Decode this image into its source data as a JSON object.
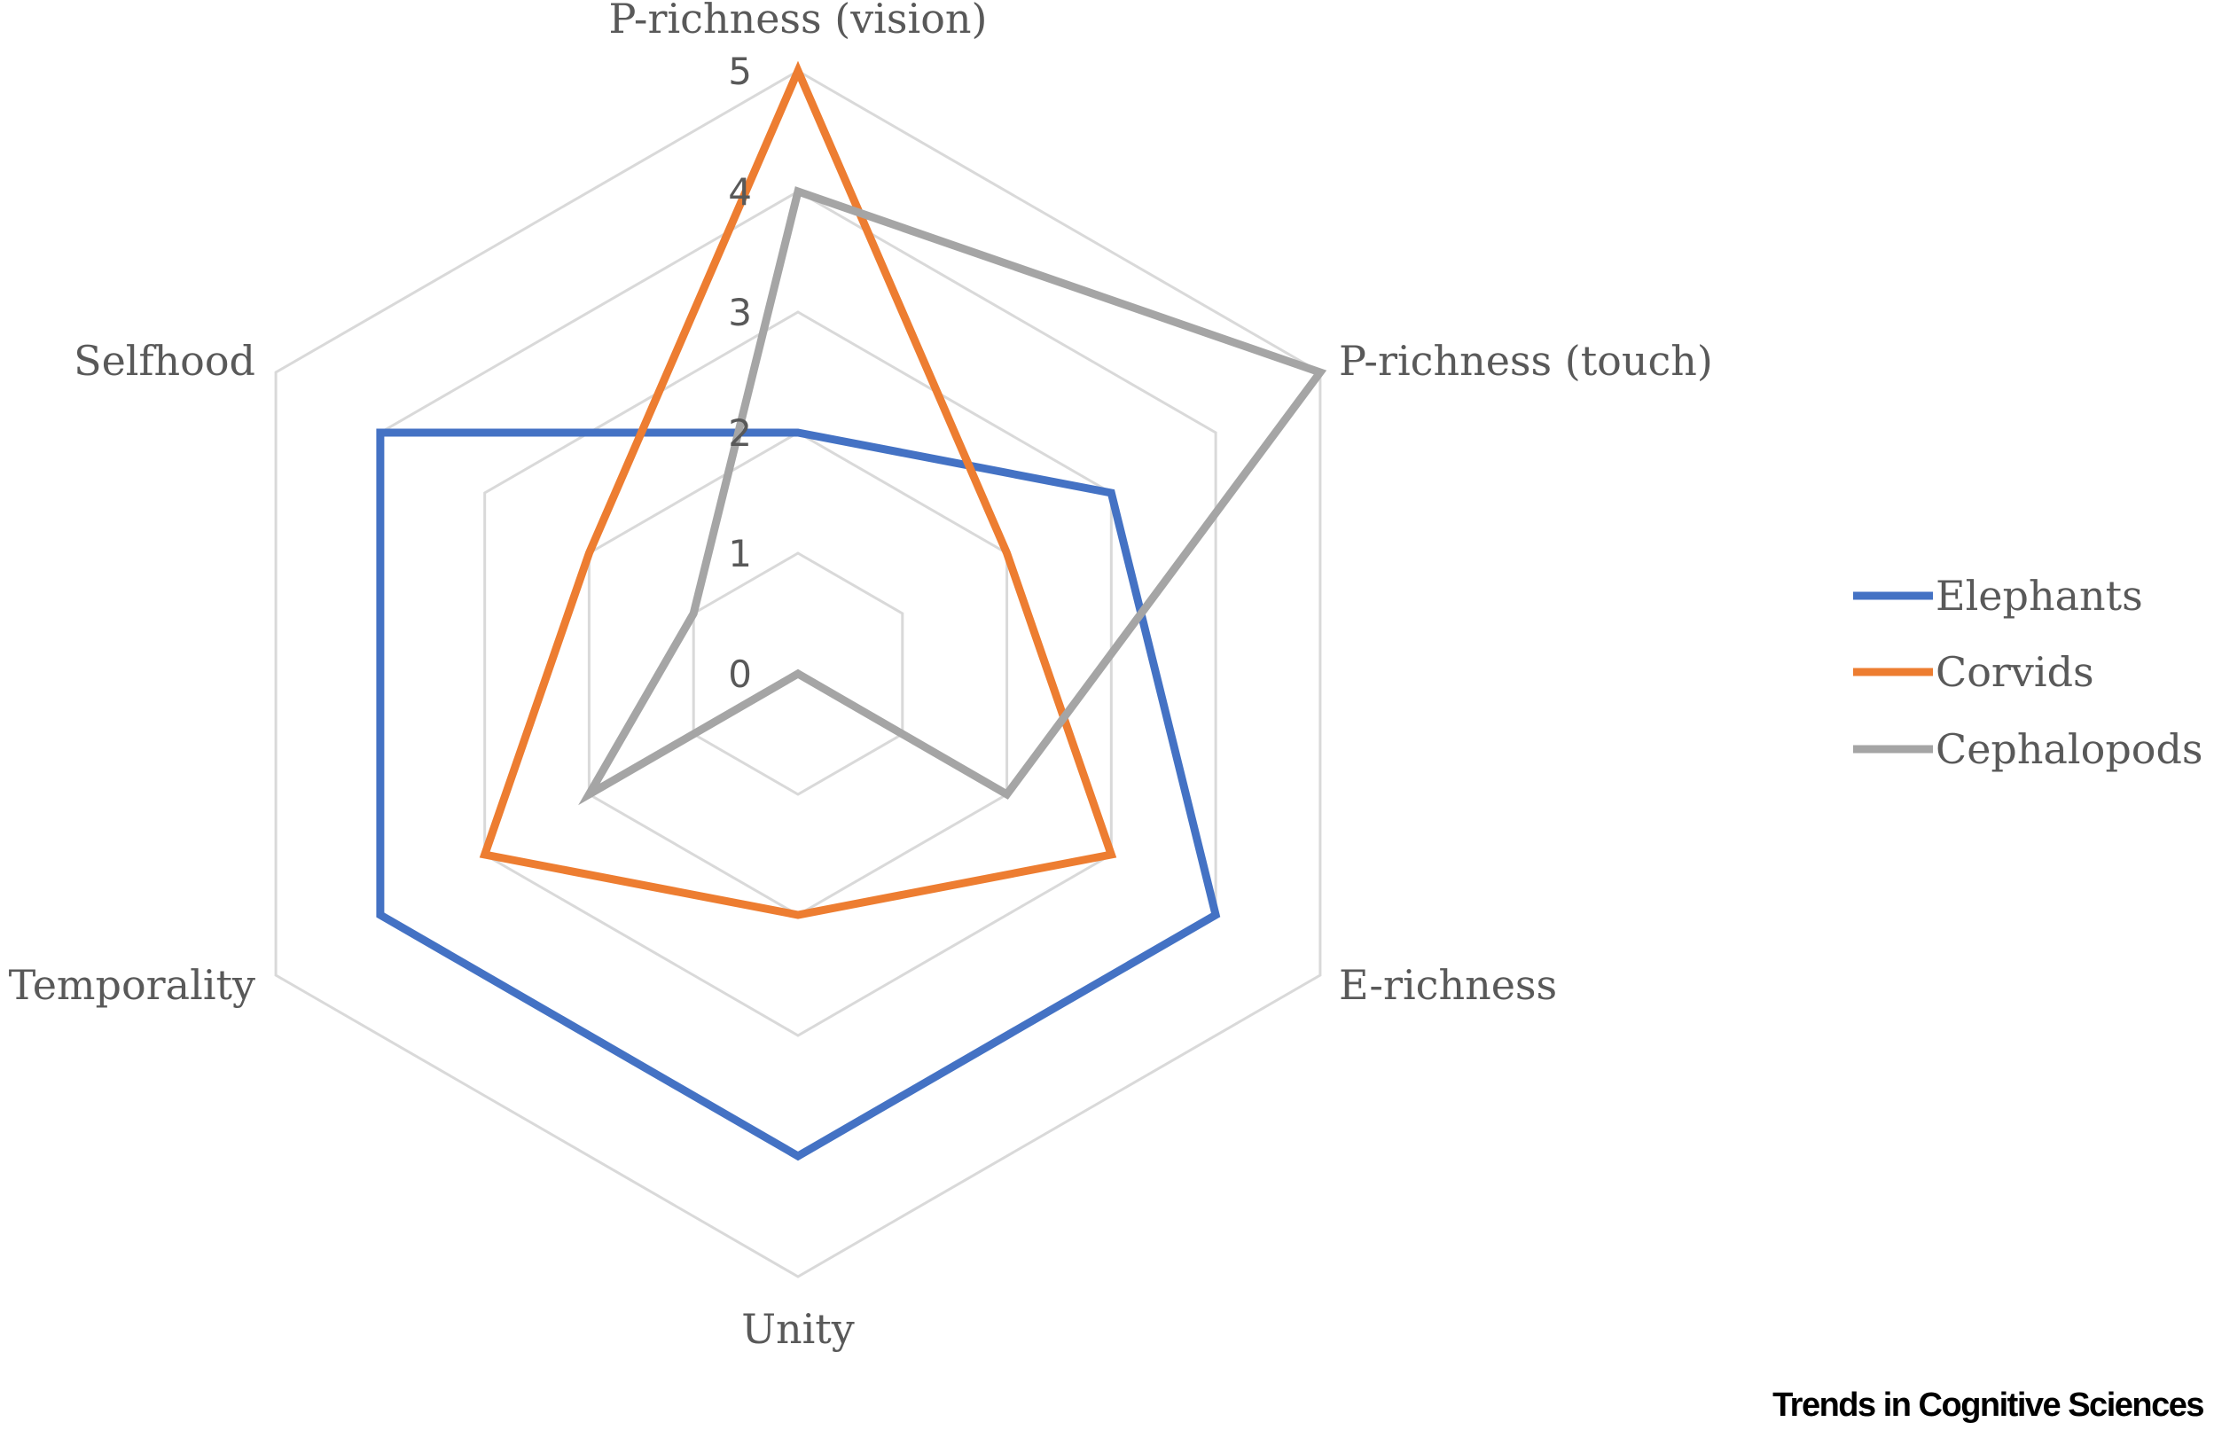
{
  "chart_data": {
    "type": "radar",
    "axes": [
      "P-richness (vision)",
      "P-richness (touch)",
      "E-richness",
      "Unity",
      "Temporality",
      "Selfhood"
    ],
    "range": [
      0,
      5
    ],
    "ticks": [
      "0",
      "1",
      "2",
      "3",
      "4",
      "5"
    ],
    "grid": true,
    "legend_position": "right",
    "series": [
      {
        "name": "Elephants",
        "color": "#4472C4",
        "values": [
          2,
          3,
          4,
          4,
          4,
          4
        ]
      },
      {
        "name": "Corvids",
        "color": "#ED7D31",
        "values": [
          5,
          2,
          3,
          2,
          3,
          2
        ]
      },
      {
        "name": "Cephalopods",
        "color": "#A5A5A5",
        "values": [
          4,
          5,
          2,
          0,
          2,
          1
        ]
      }
    ]
  },
  "watermark": "Trends in Cognitive Sciences"
}
